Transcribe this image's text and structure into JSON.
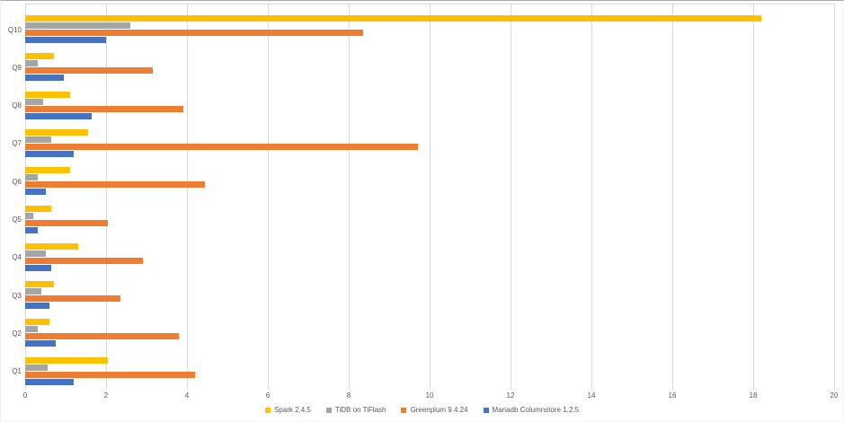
{
  "chart_data": {
    "type": "bar",
    "orientation": "horizontal",
    "categories": [
      "Q10",
      "Q9",
      "Q8",
      "Q7",
      "Q6",
      "Q5",
      "Q4",
      "Q3",
      "Q2",
      "Q1"
    ],
    "series": [
      {
        "name": "Spark 2.4.5",
        "color": "#FFC000",
        "values": [
          18.2,
          0.7,
          1.1,
          1.55,
          1.1,
          0.65,
          1.3,
          0.7,
          0.6,
          2.05
        ]
      },
      {
        "name": "TiDB on TiFlash",
        "color": "#A5A5A5",
        "values": [
          2.6,
          0.3,
          0.45,
          0.65,
          0.3,
          0.2,
          0.5,
          0.4,
          0.3,
          0.55
        ]
      },
      {
        "name": "Greenplum 9.4.24",
        "color": "#ED7D31",
        "values": [
          8.35,
          3.15,
          3.9,
          9.7,
          4.45,
          2.05,
          2.9,
          2.35,
          3.8,
          4.2
        ]
      },
      {
        "name": "Mariadb Columnstore 1.2.5",
        "color": "#4472C4",
        "values": [
          2.0,
          0.95,
          1.65,
          1.2,
          0.5,
          0.3,
          0.65,
          0.6,
          0.75,
          1.2
        ]
      }
    ],
    "xlim": [
      0,
      20
    ],
    "x_ticks": [
      0,
      2,
      4,
      6,
      8,
      10,
      12,
      14,
      16,
      18,
      20
    ],
    "grid": "vertical-only",
    "legend_position": "bottom-center",
    "colors": {
      "gridline": "#d9d9d9",
      "axis_text": "#595959",
      "legend_text": "#595959"
    }
  }
}
